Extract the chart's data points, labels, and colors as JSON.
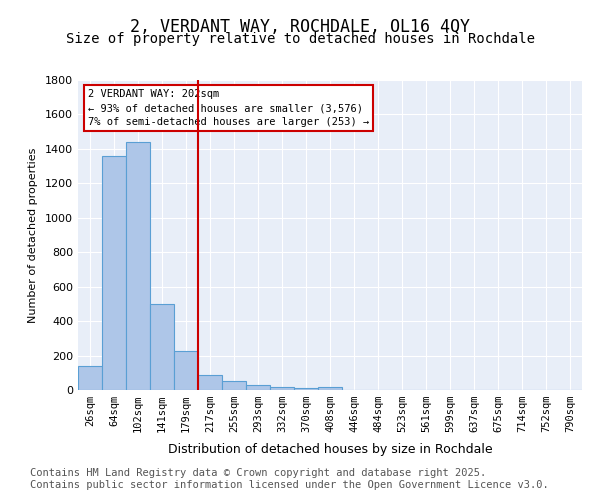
{
  "title1": "2, VERDANT WAY, ROCHDALE, OL16 4QY",
  "title2": "Size of property relative to detached houses in Rochdale",
  "xlabel": "Distribution of detached houses by size in Rochdale",
  "ylabel": "Number of detached properties",
  "bar_labels": [
    "26sqm",
    "64sqm",
    "102sqm",
    "141sqm",
    "179sqm",
    "217sqm",
    "255sqm",
    "293sqm",
    "332sqm",
    "370sqm",
    "408sqm",
    "446sqm",
    "484sqm",
    "523sqm",
    "561sqm",
    "599sqm",
    "637sqm",
    "675sqm",
    "714sqm",
    "752sqm",
    "790sqm"
  ],
  "bar_values": [
    140,
    1360,
    1440,
    500,
    225,
    90,
    55,
    30,
    18,
    10,
    18,
    0,
    0,
    0,
    0,
    0,
    0,
    0,
    0,
    0,
    0
  ],
  "bar_color": "#aec6e8",
  "bar_edgecolor": "#5a9fd4",
  "vline_x": 4.5,
  "vline_color": "#cc0000",
  "annotation_text": "2 VERDANT WAY: 202sqm\n← 93% of detached houses are smaller (3,576)\n7% of semi-detached houses are larger (253) →",
  "annotation_box_color": "#ffffff",
  "annotation_box_edgecolor": "#cc0000",
  "ylim": [
    0,
    1800
  ],
  "yticks": [
    0,
    200,
    400,
    600,
    800,
    1000,
    1200,
    1400,
    1600,
    1800
  ],
  "background_color": "#e8eef8",
  "footer_text": "Contains HM Land Registry data © Crown copyright and database right 2025.\nContains public sector information licensed under the Open Government Licence v3.0.",
  "title_fontsize": 12,
  "subtitle_fontsize": 10,
  "footer_fontsize": 7.5
}
